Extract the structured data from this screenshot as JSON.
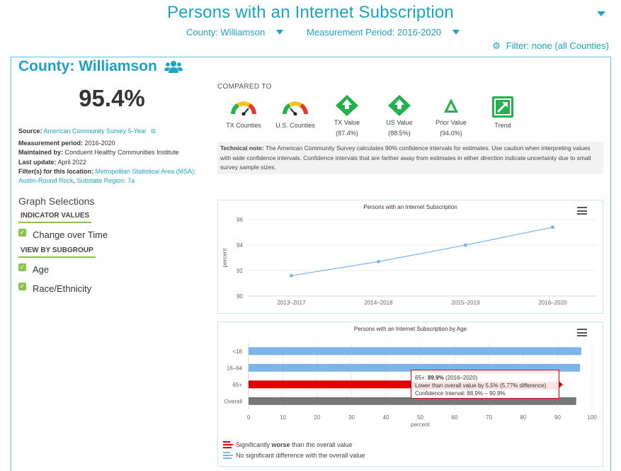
{
  "header": {
    "title": "Persons with an Internet Subscription",
    "county_select": "County: Williamson",
    "period_select": "Measurement Period: 2016-2020",
    "filter_label": "Filter: none (all Counties)"
  },
  "summary": {
    "county": "County: Williamson",
    "value": "95.4%",
    "source_label": "Source:",
    "source": "American Community Survey 5-Year",
    "period_label": "Measurement period:",
    "period": "2016-2020",
    "maintained_label": "Maintained by:",
    "maintained": "Conduent Healthy Communities Institute",
    "update_label": "Last update:",
    "update": "April 2022",
    "filters_label": "Filter(s) for this location:",
    "filter_msa": "Metropolitan Statistical Area (MSA): Austin-Round Rock",
    "filter_sep": ",",
    "filter_region": "Substate Region: 7a"
  },
  "graph_selections": {
    "title": "Graph Selections",
    "indicator_head": "INDICATOR VALUES",
    "change_over_time": "Change over Time",
    "subgroup_head": "VIEW BY SUBGROUP",
    "age": "Age",
    "race": "Race/Ethnicity"
  },
  "comparison": {
    "compared_to": "COMPARED TO",
    "tx_counties": "TX Counties",
    "us_counties": "U.S. Counties",
    "tx_value_label": "TX Value",
    "tx_value": "(87.4%)",
    "us_value_label": "US Value",
    "us_value": "(88.5%)",
    "prior_label": "Prior Value",
    "prior_value": "(94.0%)",
    "trend": "Trend",
    "colors": {
      "green": "#22b14c",
      "yellow": "#f2c31b",
      "red": "#e23b2b"
    }
  },
  "tech_note": {
    "label": "Technical note:",
    "text": "The American Community Survey calculates 90% confidence intervals for estimates. Use caution when interpreting values with wide confidence intervals. Confidence intervals that are farther away from estimates in either direction indicate uncertainty due to small survey sample sizes."
  },
  "chart_data": [
    {
      "type": "line",
      "title": "Persons with an Internet Subscription",
      "categories": [
        "2013–2017",
        "2014–2018",
        "2015–2019",
        "2016–2020"
      ],
      "values": [
        91.6,
        92.7,
        94.0,
        95.4
      ],
      "ylabel": "percent",
      "ylim": [
        90,
        96
      ],
      "yticks": [
        "90",
        "92",
        "94",
        "96"
      ],
      "color": "#7cb5ec"
    },
    {
      "type": "bar",
      "orientation": "horizontal",
      "title": "Persons with an Internet Subscription by Age",
      "categories": [
        "<18",
        "18–64",
        "65+",
        "Overall"
      ],
      "values": [
        96.9,
        96.5,
        89.9,
        95.4
      ],
      "colors": [
        "#7cb5ec",
        "#7cb5ec",
        "#e00000",
        "#777777"
      ],
      "xlabel": "percent",
      "xlim": [
        0,
        100
      ],
      "xticks": [
        "0",
        "10",
        "20",
        "30",
        "40",
        "50",
        "60",
        "70",
        "80",
        "90",
        "100"
      ],
      "tooltip": {
        "head": "65+:",
        "value": "89.9%",
        "period": "(2016–2020)",
        "line2": "Lower than overall value by 5.5% (5.77% difference)",
        "line3": "Confidence Interval: 88.9% – 90.9%"
      },
      "legend": {
        "worse_pre": "Significantly",
        "worse_bold": "worse",
        "worse_post": "than the overall value",
        "nodiff": "No significant difference with the overall value"
      }
    }
  ]
}
